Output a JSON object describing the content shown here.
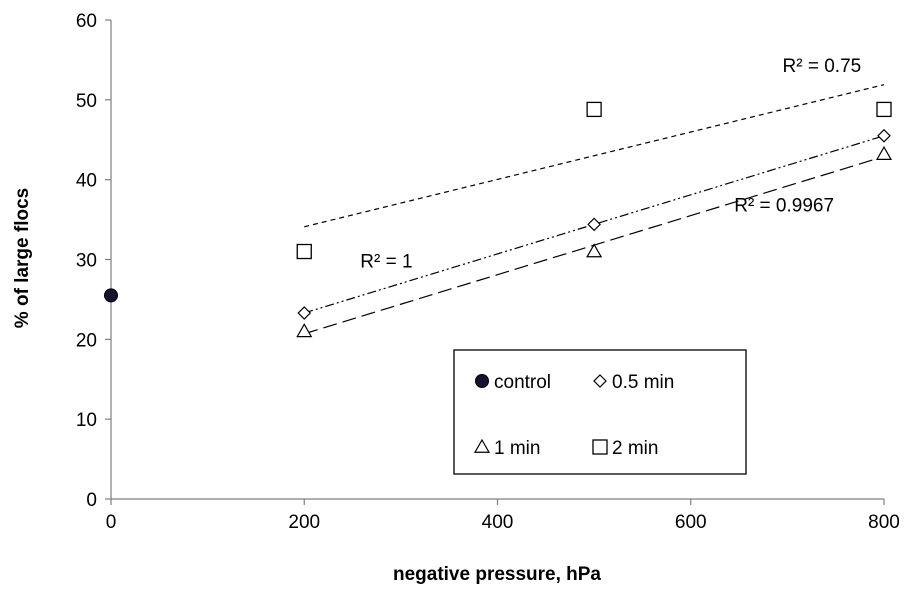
{
  "chart_data": {
    "type": "scatter",
    "xlabel": "negative pressure, hPa",
    "ylabel": "% of large flocs",
    "xlim": [
      0,
      800
    ],
    "ylim": [
      0,
      60
    ],
    "x_ticks": [
      0,
      200,
      400,
      600,
      800
    ],
    "y_ticks": [
      0,
      10,
      20,
      30,
      40,
      50,
      60
    ],
    "grid": false,
    "legend_position": "bottom-right",
    "series": [
      {
        "name": "control",
        "marker": "filled-circle",
        "color": "#1a1030",
        "points": [
          [
            0,
            25.5
          ]
        ]
      },
      {
        "name": "0.5 min",
        "marker": "diamond",
        "color": "#000000",
        "points": [
          [
            200,
            23.3
          ],
          [
            500,
            34.4
          ],
          [
            800,
            45.5
          ]
        ],
        "trend": {
          "style": "dash-dot-dot",
          "from": [
            200,
            23.3
          ],
          "to": [
            800,
            45.5
          ],
          "r2_label": "R² = 1"
        }
      },
      {
        "name": "1 min",
        "marker": "triangle",
        "color": "#000000",
        "points": [
          [
            200,
            21
          ],
          [
            500,
            31
          ],
          [
            800,
            43.2
          ]
        ],
        "trend": {
          "style": "long-dash",
          "from": [
            200,
            20.7
          ],
          "to": [
            800,
            42.9
          ],
          "r2_label": "R² = 0.9967"
        }
      },
      {
        "name": "2 min",
        "marker": "square",
        "color": "#000000",
        "points": [
          [
            200,
            31
          ],
          [
            500,
            48.8
          ],
          [
            800,
            48.8
          ]
        ],
        "trend": {
          "style": "short-dash",
          "from": [
            200,
            34.1
          ],
          "to": [
            800,
            51.9
          ],
          "r2_label": "R² = 0.75"
        }
      }
    ],
    "annotations": [
      {
        "text": "R² = 0.75",
        "x": 695,
        "y": 53.5
      },
      {
        "text": "R² = 1",
        "x": 258,
        "y": 29
      },
      {
        "text": "R² = 0.9967",
        "x": 645,
        "y": 36
      }
    ]
  }
}
